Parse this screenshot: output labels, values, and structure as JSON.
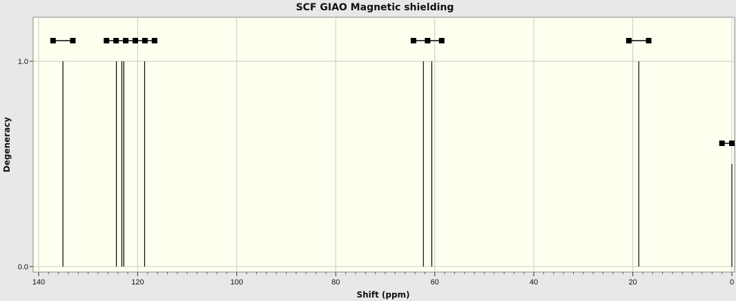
{
  "chart_data": {
    "type": "bar",
    "title": "SCF GIAO Magnetic shielding",
    "xlabel": "Shift (ppm)",
    "ylabel": "Degeneracy",
    "xlim": [
      140,
      0
    ],
    "ylim": [
      0,
      1
    ],
    "x_ticks": [
      "140",
      "120",
      "100",
      "80",
      "60",
      "40",
      "20",
      "0"
    ],
    "y_ticks": [
      "0.0",
      "1.0"
    ],
    "grid": true,
    "peaks": [
      {
        "x": 135.1,
        "value": 1.0
      },
      {
        "x": 124.3,
        "value": 1.0
      },
      {
        "x": 123.2,
        "value": 1.0
      },
      {
        "x": 122.8,
        "value": 1.0
      },
      {
        "x": 118.6,
        "value": 1.0
      },
      {
        "x": 62.3,
        "value": 1.0
      },
      {
        "x": 60.6,
        "value": 1.0
      },
      {
        "x": 18.8,
        "value": 1.0
      },
      {
        "x": 0.0,
        "value": 0.5
      }
    ],
    "colors": {
      "plot_bg": "#fffff0",
      "page_bg": "#e8e8e8",
      "peak": "#000000",
      "grid": "#c8c8c8"
    }
  }
}
